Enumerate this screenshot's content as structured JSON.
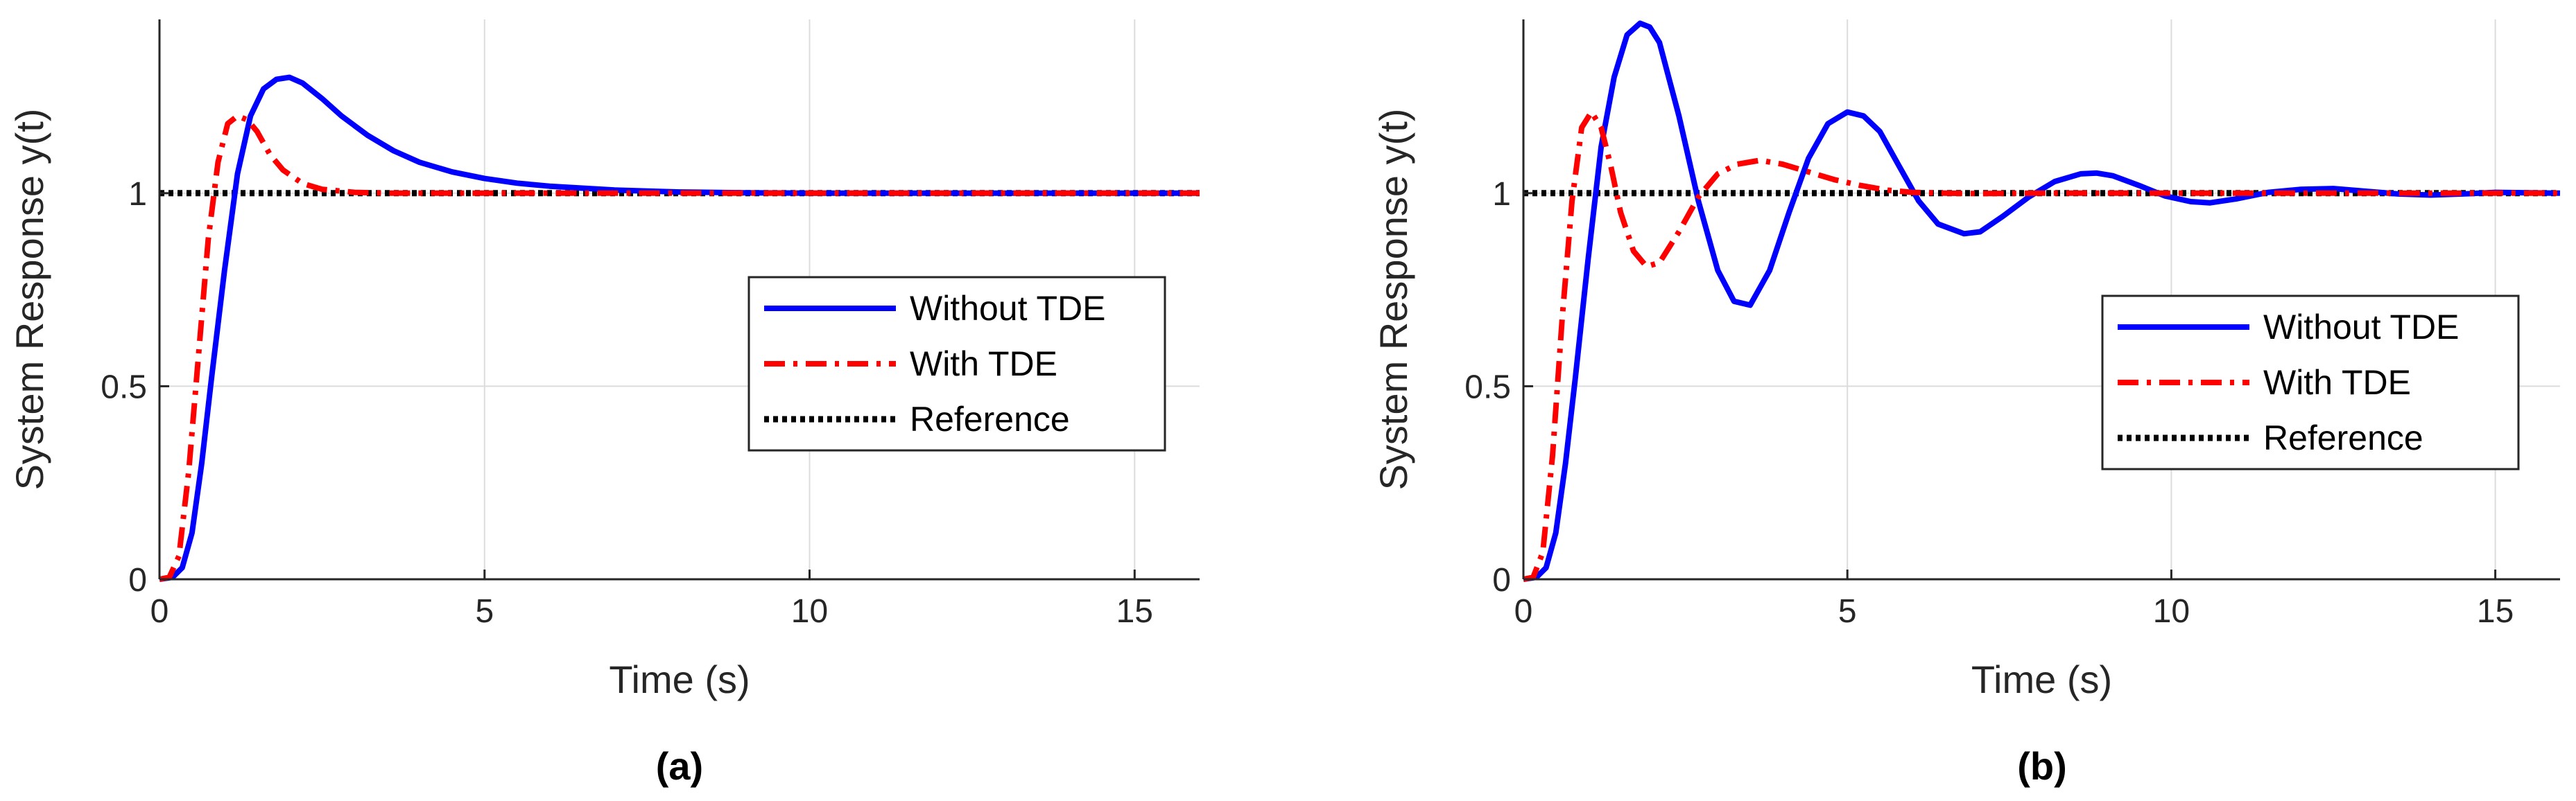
{
  "chart_data": [
    {
      "type": "line",
      "caption": "(a)",
      "xlabel": "Time (s)",
      "ylabel": "System Response y(t)",
      "xlim": [
        0,
        16
      ],
      "ylim": [
        0,
        1.45
      ],
      "xticks": [
        0,
        5,
        10,
        15
      ],
      "yticks": [
        0,
        0.5,
        1
      ],
      "xtick_labels": [
        "0",
        "5",
        "10",
        "15"
      ],
      "ytick_labels": [
        "0",
        "0.5",
        "1"
      ],
      "grid": true,
      "legend_position": "center-right",
      "colors": {
        "without": "#0000ff",
        "with": "#ff0000",
        "reference": "#000000"
      },
      "series": [
        {
          "name": "Without TDE",
          "style": "solid",
          "x": [
            0,
            0.2,
            0.35,
            0.5,
            0.65,
            0.8,
            1.0,
            1.2,
            1.4,
            1.6,
            1.8,
            2.0,
            2.2,
            2.5,
            2.8,
            3.2,
            3.6,
            4.0,
            4.5,
            5.0,
            5.5,
            6.0,
            7.0,
            8.0,
            9.0,
            10.0,
            12.0,
            14.0,
            16.0
          ],
          "y": [
            0,
            0.005,
            0.03,
            0.12,
            0.3,
            0.52,
            0.8,
            1.05,
            1.2,
            1.27,
            1.295,
            1.3,
            1.285,
            1.245,
            1.2,
            1.15,
            1.11,
            1.08,
            1.055,
            1.038,
            1.026,
            1.018,
            1.008,
            1.003,
            1.001,
            1.0,
            1.0,
            1.0,
            1.0
          ]
        },
        {
          "name": "With TDE",
          "style": "dashdot",
          "x": [
            0,
            0.15,
            0.3,
            0.45,
            0.6,
            0.75,
            0.9,
            1.05,
            1.2,
            1.35,
            1.5,
            1.7,
            1.9,
            2.2,
            2.5,
            3.0,
            3.5,
            4.0,
            5.0,
            8.0,
            12.0,
            16.0
          ],
          "y": [
            0,
            0.005,
            0.06,
            0.28,
            0.58,
            0.88,
            1.08,
            1.18,
            1.2,
            1.19,
            1.16,
            1.1,
            1.06,
            1.025,
            1.01,
            1.002,
            1.0,
            1.0,
            1.0,
            1.0,
            1.0,
            1.0
          ]
        },
        {
          "name": "Reference",
          "style": "dotted",
          "x": [
            0,
            16
          ],
          "y": [
            1,
            1
          ]
        }
      ]
    },
    {
      "type": "line",
      "caption": "(b)",
      "xlabel": "Time (s)",
      "ylabel": "System Response y(t)",
      "xlim": [
        0,
        16
      ],
      "ylim": [
        0,
        1.45
      ],
      "xticks": [
        0,
        5,
        10,
        15
      ],
      "yticks": [
        0,
        0.5,
        1
      ],
      "xtick_labels": [
        "0",
        "5",
        "10",
        "15"
      ],
      "ytick_labels": [
        "0",
        "0.5",
        "1"
      ],
      "grid": true,
      "legend_position": "center-right",
      "colors": {
        "without": "#0000ff",
        "with": "#ff0000",
        "reference": "#000000"
      },
      "series": [
        {
          "name": "Without TDE",
          "style": "solid",
          "x": [
            0,
            0.2,
            0.35,
            0.5,
            0.65,
            0.8,
            1.0,
            1.2,
            1.4,
            1.6,
            1.8,
            1.95,
            2.1,
            2.4,
            2.7,
            3.0,
            3.25,
            3.5,
            3.8,
            4.1,
            4.4,
            4.7,
            5.0,
            5.25,
            5.5,
            5.8,
            6.1,
            6.4,
            6.8,
            7.05,
            7.4,
            7.8,
            8.2,
            8.6,
            8.85,
            9.1,
            9.5,
            9.9,
            10.3,
            10.6,
            11.0,
            11.5,
            12.0,
            12.5,
            13.0,
            13.5,
            14.0,
            14.5,
            15.0,
            16.0
          ],
          "y": [
            0,
            0.005,
            0.03,
            0.12,
            0.3,
            0.52,
            0.83,
            1.12,
            1.3,
            1.41,
            1.44,
            1.43,
            1.39,
            1.2,
            0.98,
            0.8,
            0.72,
            0.71,
            0.8,
            0.95,
            1.09,
            1.18,
            1.21,
            1.2,
            1.16,
            1.07,
            0.98,
            0.92,
            0.895,
            0.9,
            0.94,
            0.99,
            1.03,
            1.05,
            1.052,
            1.045,
            1.02,
            0.993,
            0.978,
            0.975,
            0.985,
            1.002,
            1.01,
            1.012,
            1.005,
            0.998,
            0.995,
            0.998,
            1.002,
            1.0
          ]
        },
        {
          "name": "With TDE",
          "style": "dashdot",
          "x": [
            0,
            0.15,
            0.3,
            0.45,
            0.6,
            0.75,
            0.9,
            1.05,
            1.2,
            1.35,
            1.5,
            1.7,
            1.9,
            2.1,
            2.4,
            2.7,
            3.0,
            3.3,
            3.65,
            4.0,
            4.4,
            4.8,
            5.2,
            5.6,
            6.0,
            6.5,
            7.0,
            8.0,
            9.0,
            12.0,
            16.0
          ],
          "y": [
            0,
            0.005,
            0.07,
            0.32,
            0.68,
            0.98,
            1.17,
            1.21,
            1.17,
            1.07,
            0.95,
            0.85,
            0.81,
            0.82,
            0.9,
            0.99,
            1.05,
            1.075,
            1.085,
            1.075,
            1.055,
            1.035,
            1.02,
            1.008,
            1.002,
            1.0,
            0.999,
            1.0,
            1.0,
            1.0,
            1.0
          ]
        },
        {
          "name": "Reference",
          "style": "dotted",
          "x": [
            0,
            16
          ],
          "y": [
            1,
            1
          ]
        }
      ]
    }
  ]
}
